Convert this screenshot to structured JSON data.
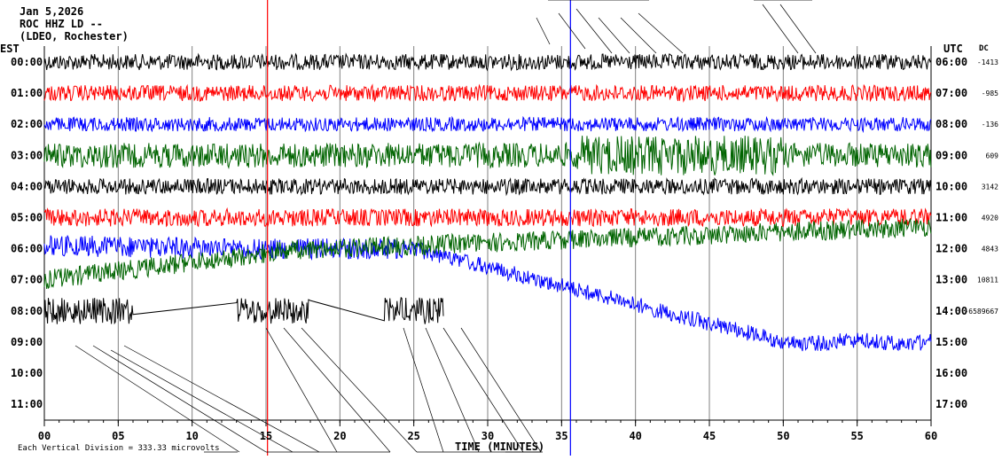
{
  "header": {
    "date": "Jan 5,2026",
    "station": "ROC HHZ LD --",
    "network": "(LDEO, Rochester)"
  },
  "axes": {
    "left_label": "EST",
    "right_label": "UTC",
    "dc_label": "DC",
    "x_title": "TIME (MINUTES)",
    "scale_note": "Each Vertical Division = 333.33 microvolts",
    "x_ticks": [
      "00",
      "05",
      "10",
      "15",
      "20",
      "25",
      "30",
      "35",
      "40",
      "45",
      "50",
      "55",
      "60"
    ]
  },
  "colors": {
    "trace_cycle": [
      "#000000",
      "#ff0000",
      "#0000ff",
      "#006400"
    ],
    "grid": "#808080",
    "marker_red": "#ff0000",
    "marker_blue": "#0000ff"
  },
  "chart_data": {
    "type": "line",
    "title": "Jan 5,2026  ROC HHZ LD --  (LDEO, Rochester)",
    "xlabel": "TIME (MINUTES)",
    "xlim": [
      0,
      60
    ],
    "x_ticks": [
      0,
      5,
      10,
      15,
      20,
      25,
      30,
      35,
      40,
      45,
      50,
      55,
      60
    ],
    "grid": true,
    "legend": "none",
    "markers_minutes": [
      {
        "minute": 15.1,
        "color": "#ff0000"
      },
      {
        "minute": 35.6,
        "color": "#0000ff"
      }
    ],
    "rows": [
      {
        "est": "00:00",
        "utc": "06:00",
        "dc": "-1413",
        "color": "#000000"
      },
      {
        "est": "01:00",
        "utc": "07:00",
        "dc": "-985",
        "color": "#ff0000"
      },
      {
        "est": "02:00",
        "utc": "08:00",
        "dc": "-136",
        "color": "#0000ff"
      },
      {
        "est": "03:00",
        "utc": "09:00",
        "dc": "609",
        "color": "#006400"
      },
      {
        "est": "04:00",
        "utc": "10:00",
        "dc": "3142",
        "color": "#000000"
      },
      {
        "est": "05:00",
        "utc": "11:00",
        "dc": "4920",
        "color": "#ff0000"
      },
      {
        "est": "06:00",
        "utc": "12:00",
        "dc": "4843",
        "color": "#0000ff"
      },
      {
        "est": "07:00",
        "utc": "13:00",
        "dc": "10811",
        "color": "#006400"
      },
      {
        "est": "08:00",
        "utc": "14:00",
        "dc": "-6589667",
        "color": "#000000"
      },
      {
        "est": "09:00",
        "utc": "15:00",
        "dc": "",
        "color": "#ff0000"
      },
      {
        "est": "10:00",
        "utc": "16:00",
        "dc": "",
        "color": "#0000ff"
      },
      {
        "est": "11:00",
        "utc": "17:00",
        "dc": "",
        "color": "#006400"
      }
    ]
  }
}
